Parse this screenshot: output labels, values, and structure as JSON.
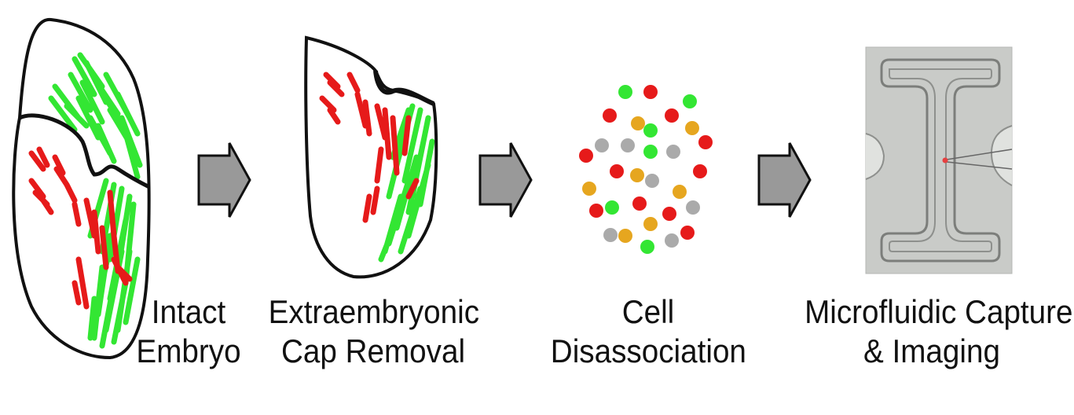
{
  "figure": {
    "steps": [
      {
        "id": "intact-embryo",
        "line1": "Intact",
        "line2": "Embryo"
      },
      {
        "id": "cap-removal",
        "line1": "Extraembryonic",
        "line2": "Cap Removal"
      },
      {
        "id": "cell-disassociation",
        "line1": "Cell",
        "line2": "Disassociation"
      },
      {
        "id": "microfluidic",
        "line1": "Microfluidic Capture",
        "line2": "& Imaging"
      }
    ],
    "colors": {
      "green": "#33e633",
      "red": "#e61a1a",
      "gray": "#aaaaaa",
      "orange": "#e6a61f",
      "arrow": "#999999",
      "outline": "#111111"
    }
  }
}
